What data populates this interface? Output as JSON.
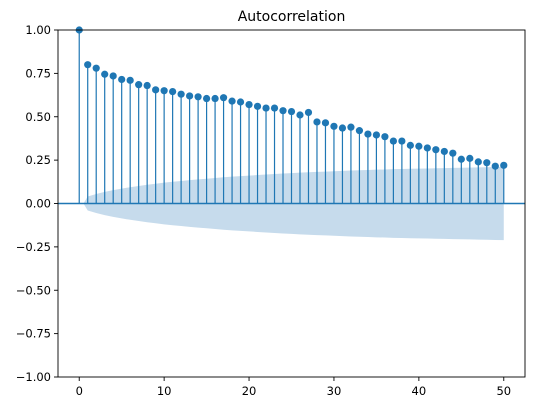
{
  "chart_data": {
    "type": "stem",
    "title": "Autocorrelation",
    "xlabel": "",
    "ylabel": "",
    "xlim": [
      -2.5,
      52.5
    ],
    "ylim": [
      -1.0,
      1.0
    ],
    "x_ticks": [
      0,
      10,
      20,
      30,
      40,
      50
    ],
    "y_ticks": [
      -1.0,
      -0.75,
      -0.5,
      -0.25,
      0.0,
      0.25,
      0.5,
      0.75,
      1.0
    ],
    "y_tick_labels": [
      "−1.00",
      "−0.75",
      "−0.50",
      "−0.25",
      "0.00",
      "0.25",
      "0.50",
      "0.75",
      "1.00"
    ],
    "x_tick_labels": [
      "0",
      "10",
      "20",
      "30",
      "40",
      "50"
    ],
    "grid": false,
    "series": [
      {
        "lags": [
          0,
          1,
          2,
          3,
          4,
          5,
          6,
          7,
          8,
          9,
          10,
          11,
          12,
          13,
          14,
          15,
          16,
          17,
          18,
          19,
          20,
          21,
          22,
          23,
          24,
          25,
          26,
          27,
          28,
          29,
          30,
          31,
          32,
          33,
          34,
          35,
          36,
          37,
          38,
          39,
          40,
          41,
          42,
          43,
          44,
          45,
          46,
          47,
          48,
          49,
          50
        ],
        "values": [
          1.0,
          0.8,
          0.78,
          0.745,
          0.735,
          0.715,
          0.71,
          0.685,
          0.68,
          0.655,
          0.65,
          0.645,
          0.63,
          0.62,
          0.615,
          0.605,
          0.605,
          0.61,
          0.59,
          0.585,
          0.57,
          0.56,
          0.55,
          0.55,
          0.535,
          0.53,
          0.51,
          0.525,
          0.47,
          0.465,
          0.445,
          0.435,
          0.44,
          0.42,
          0.4,
          0.395,
          0.385,
          0.36,
          0.36,
          0.335,
          0.33,
          0.32,
          0.31,
          0.3,
          0.29,
          0.255,
          0.26,
          0.24,
          0.235,
          0.215,
          0.22
        ]
      }
    ],
    "confidence_band": {
      "lags": [
        0,
        1,
        2,
        3,
        4,
        5,
        6,
        7,
        8,
        9,
        10,
        11,
        12,
        13,
        14,
        15,
        16,
        17,
        18,
        19,
        20,
        21,
        22,
        23,
        24,
        25,
        26,
        27,
        28,
        29,
        30,
        31,
        32,
        33,
        34,
        35,
        36,
        37,
        38,
        39,
        40,
        41,
        42,
        43,
        44,
        45,
        46,
        47,
        48,
        49,
        50
      ],
      "half_width": [
        0.0,
        0.04,
        0.055,
        0.067,
        0.077,
        0.086,
        0.094,
        0.101,
        0.108,
        0.114,
        0.12,
        0.125,
        0.13,
        0.135,
        0.139,
        0.143,
        0.147,
        0.151,
        0.155,
        0.158,
        0.161,
        0.164,
        0.167,
        0.17,
        0.173,
        0.175,
        0.178,
        0.18,
        0.182,
        0.184,
        0.186,
        0.188,
        0.19,
        0.192,
        0.193,
        0.195,
        0.196,
        0.198,
        0.199,
        0.2,
        0.201,
        0.202,
        0.203,
        0.204,
        0.205,
        0.206,
        0.207,
        0.208,
        0.209,
        0.21,
        0.211
      ]
    },
    "colors": {
      "stem": "#1f77b4",
      "marker": "#1f77b4",
      "band": "#c6dbec",
      "zero_line": "#1f77b4",
      "axis": "#000000"
    }
  }
}
